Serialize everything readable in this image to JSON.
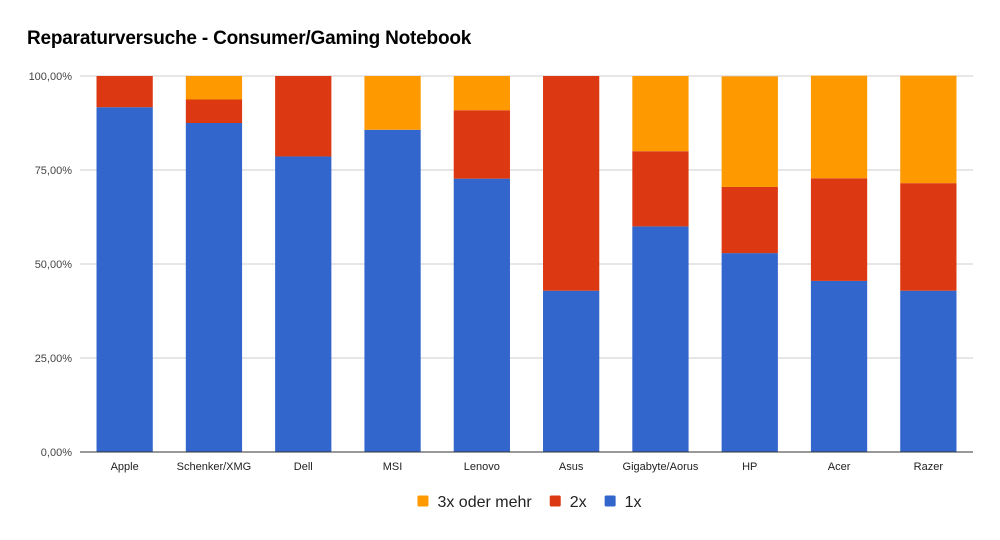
{
  "chart_data": {
    "type": "bar",
    "stacked": true,
    "normalized": true,
    "title": "Reparaturversuche - Consumer/Gaming Notebook",
    "xlabel": "",
    "ylabel": "",
    "ylim": [
      0,
      100
    ],
    "y_ticks": [
      "0,00%",
      "25,00%",
      "50,00%",
      "75,00%",
      "100,00%"
    ],
    "y_tick_values": [
      0,
      25,
      50,
      75,
      100
    ],
    "grid": true,
    "legend_position": "bottom",
    "categories": [
      "Apple",
      "Schenker/XMG",
      "Dell",
      "MSI",
      "Lenovo",
      "Asus",
      "Gigabyte/Aorus",
      "HP",
      "Acer",
      "Razer"
    ],
    "series": [
      {
        "name": "1x",
        "color": "#3366cc",
        "values": [
          91.7,
          87.5,
          78.6,
          85.7,
          72.7,
          42.9,
          60.0,
          52.9,
          45.5,
          42.9
        ]
      },
      {
        "name": "2x",
        "color": "#dc3912",
        "values": [
          8.3,
          6.25,
          21.4,
          0.0,
          18.2,
          57.1,
          20.0,
          17.6,
          27.3,
          28.6
        ]
      },
      {
        "name": "3x oder mehr",
        "color": "#ff9900",
        "values": [
          0.0,
          6.25,
          0.0,
          14.3,
          9.1,
          0.0,
          20.0,
          29.4,
          27.3,
          28.6
        ]
      }
    ],
    "legend_order": [
      "3x oder mehr",
      "2x",
      "1x"
    ]
  }
}
